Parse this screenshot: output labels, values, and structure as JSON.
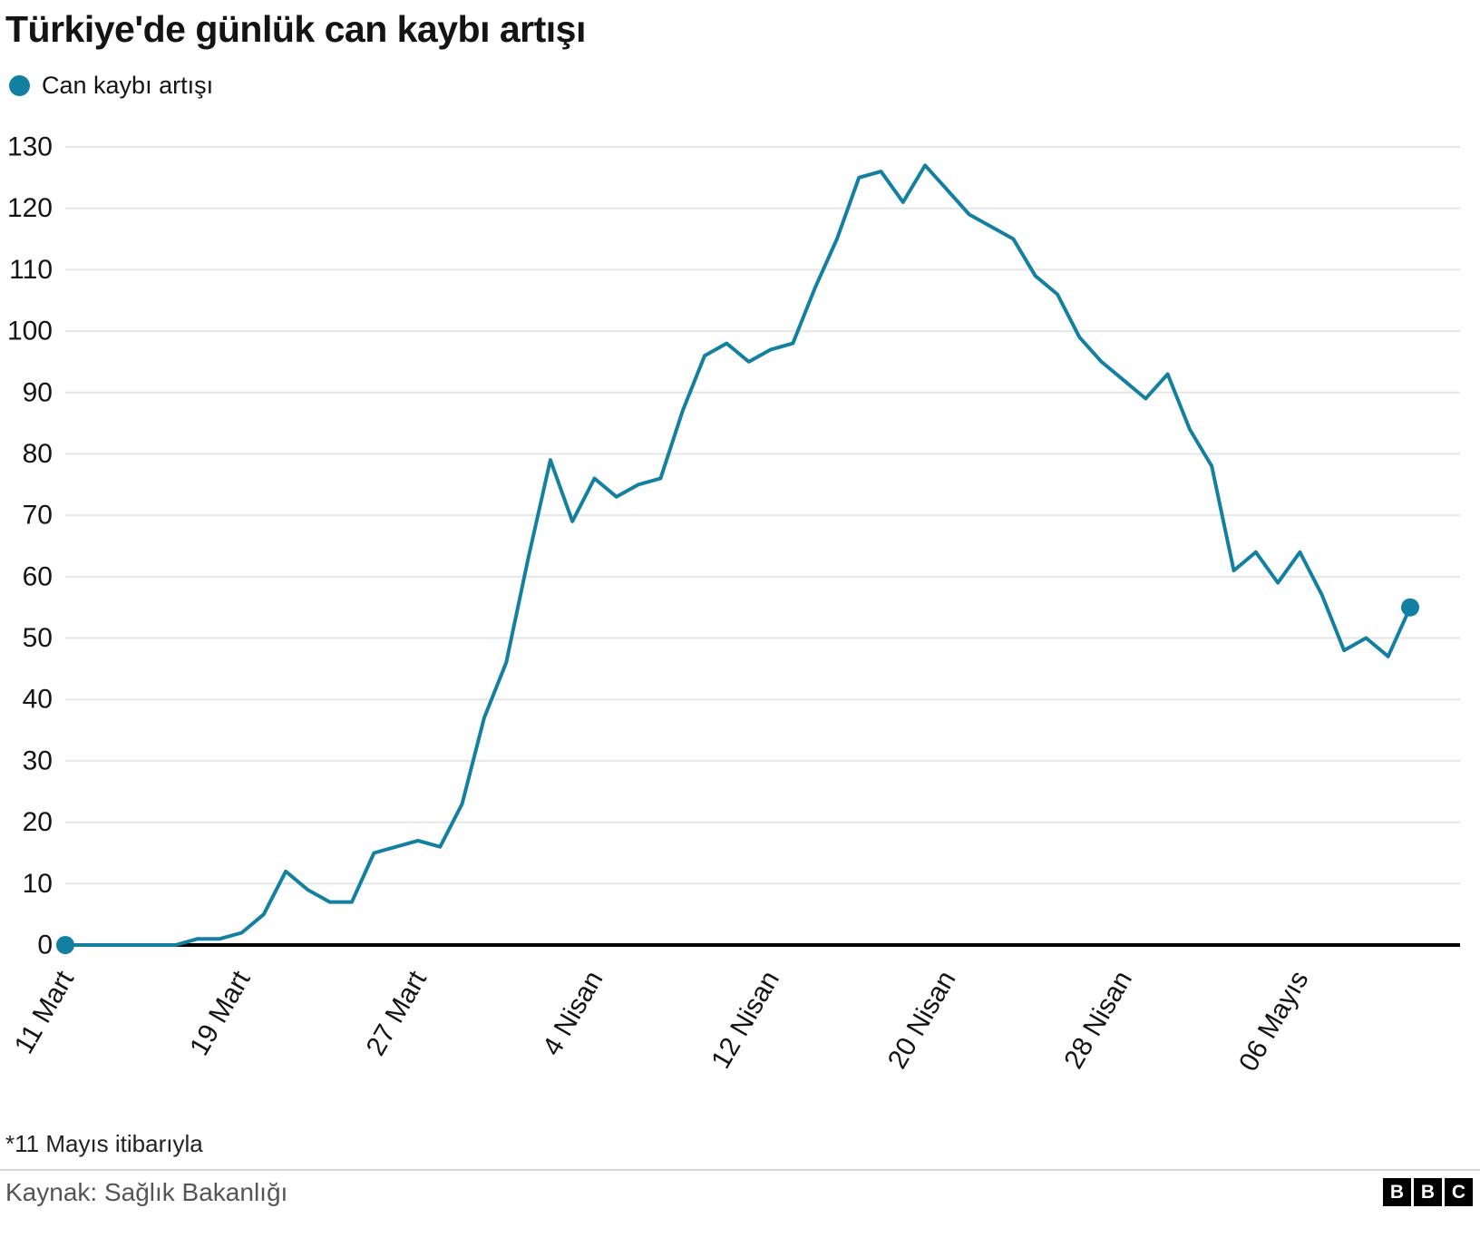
{
  "page": {
    "title": "Türkiye'de günlük can kaybı artışı",
    "footnote": "*11 Mayıs itibarıyla",
    "source": "Kaynak: Sağlık Bakanlığı",
    "logo_letters": [
      "B",
      "B",
      "C"
    ]
  },
  "chart_data": {
    "type": "line",
    "title": "Türkiye'de günlük can kaybı artışı",
    "series_name": "Can kaybı artışı",
    "color": "#1380A1",
    "grid": "horizontal",
    "legend_position": "top-left",
    "markers": "first-and-last-point",
    "ylim": [
      0,
      130
    ],
    "y_ticks": [
      0,
      10,
      20,
      30,
      40,
      50,
      60,
      70,
      80,
      90,
      100,
      110,
      120,
      130
    ],
    "x_tick_labels": [
      "11 Mart",
      "19 Mart",
      "27 Mart",
      "4 Nisan",
      "12 Nisan",
      "20 Nisan",
      "28 Nisan",
      "06 Mayıs"
    ],
    "x_tick_indices": [
      0,
      8,
      16,
      24,
      32,
      40,
      48,
      56
    ],
    "x": [
      "11 Mart",
      "12 Mart",
      "13 Mart",
      "14 Mart",
      "15 Mart",
      "16 Mart",
      "17 Mart",
      "18 Mart",
      "19 Mart",
      "20 Mart",
      "21 Mart",
      "22 Mart",
      "23 Mart",
      "24 Mart",
      "25 Mart",
      "26 Mart",
      "27 Mart",
      "28 Mart",
      "29 Mart",
      "30 Mart",
      "31 Mart",
      "1 Nisan",
      "2 Nisan",
      "3 Nisan",
      "4 Nisan",
      "5 Nisan",
      "6 Nisan",
      "7 Nisan",
      "8 Nisan",
      "9 Nisan",
      "10 Nisan",
      "11 Nisan",
      "12 Nisan",
      "13 Nisan",
      "14 Nisan",
      "15 Nisan",
      "16 Nisan",
      "17 Nisan",
      "18 Nisan",
      "19 Nisan",
      "20 Nisan",
      "21 Nisan",
      "22 Nisan",
      "23 Nisan",
      "24 Nisan",
      "25 Nisan",
      "26 Nisan",
      "27 Nisan",
      "28 Nisan",
      "29 Nisan",
      "30 Nisan",
      "1 Mayıs",
      "2 Mayıs",
      "3 Mayıs",
      "4 Mayıs",
      "5 Mayıs",
      "6 Mayıs",
      "7 Mayıs",
      "8 Mayıs",
      "9 Mayıs",
      "10 Mayıs",
      "11 Mayıs"
    ],
    "values": [
      0,
      0,
      0,
      0,
      0,
      0,
      1,
      1,
      2,
      5,
      12,
      9,
      7,
      7,
      15,
      16,
      17,
      16,
      23,
      37,
      46,
      63,
      79,
      69,
      76,
      73,
      75,
      76,
      87,
      96,
      98,
      95,
      97,
      98,
      107,
      115,
      125,
      126,
      121,
      127,
      123,
      119,
      117,
      115,
      109,
      106,
      99,
      95,
      92,
      89,
      93,
      84,
      78,
      61,
      64,
      59,
      64,
      57,
      48,
      50,
      47,
      55
    ]
  }
}
